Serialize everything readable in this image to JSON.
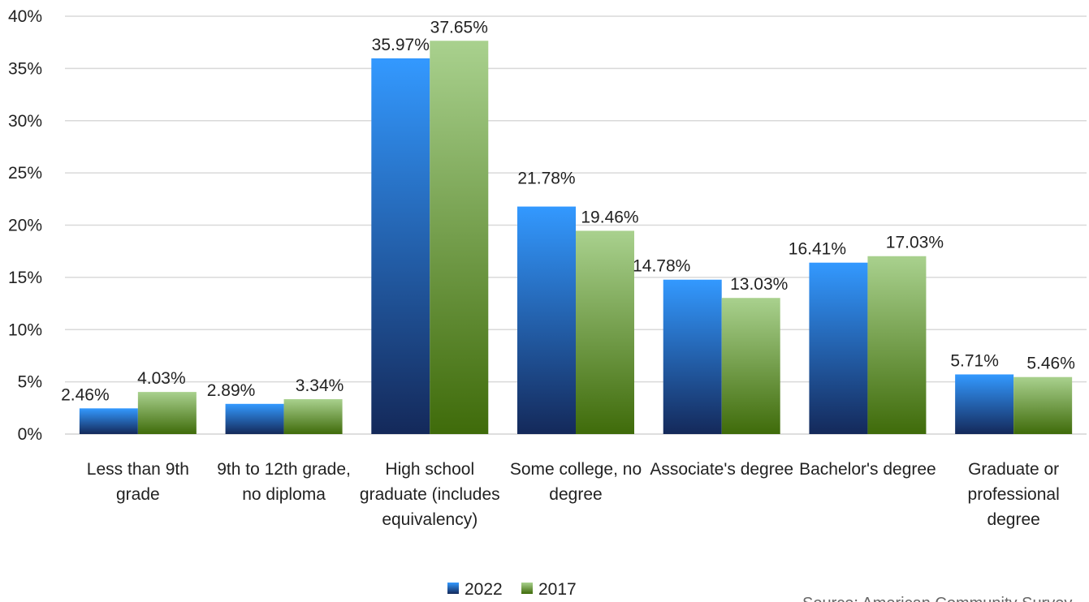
{
  "chart_data": {
    "type": "bar",
    "categories": [
      [
        "Less than 9th",
        "grade"
      ],
      [
        "9th to 12th grade,",
        "no diploma"
      ],
      [
        "High school",
        "graduate (includes",
        "equivalency)"
      ],
      [
        "Some college, no",
        "degree"
      ],
      [
        "Associate's degree"
      ],
      [
        "Bachelor's degree"
      ],
      [
        "Graduate or",
        "professional",
        "degree"
      ]
    ],
    "series": [
      {
        "name": "2022",
        "values": [
          2.46,
          2.89,
          35.97,
          21.78,
          14.78,
          16.41,
          5.71
        ],
        "labels": [
          "2.46%",
          "2.89%",
          "35.97%",
          "21.78%",
          "14.78%",
          "16.41%",
          "5.71%"
        ],
        "color_top": "#3399ff",
        "color_bottom": "#14295a"
      },
      {
        "name": "2017",
        "values": [
          4.03,
          3.34,
          37.65,
          19.46,
          13.03,
          17.03,
          5.46
        ],
        "labels": [
          "4.03%",
          "3.34%",
          "37.65%",
          "19.46%",
          "13.03%",
          "17.03%",
          "5.46%"
        ],
        "color_top": "#a9d18e",
        "color_bottom": "#3f6b0a"
      }
    ],
    "yticks": [
      "0%",
      "5%",
      "10%",
      "15%",
      "20%",
      "25%",
      "30%",
      "35%",
      "40%"
    ],
    "ylim": [
      0,
      40
    ],
    "ytick_step": 5,
    "grid": true,
    "legend": "bottom",
    "source": "Source: American Community Survey"
  }
}
